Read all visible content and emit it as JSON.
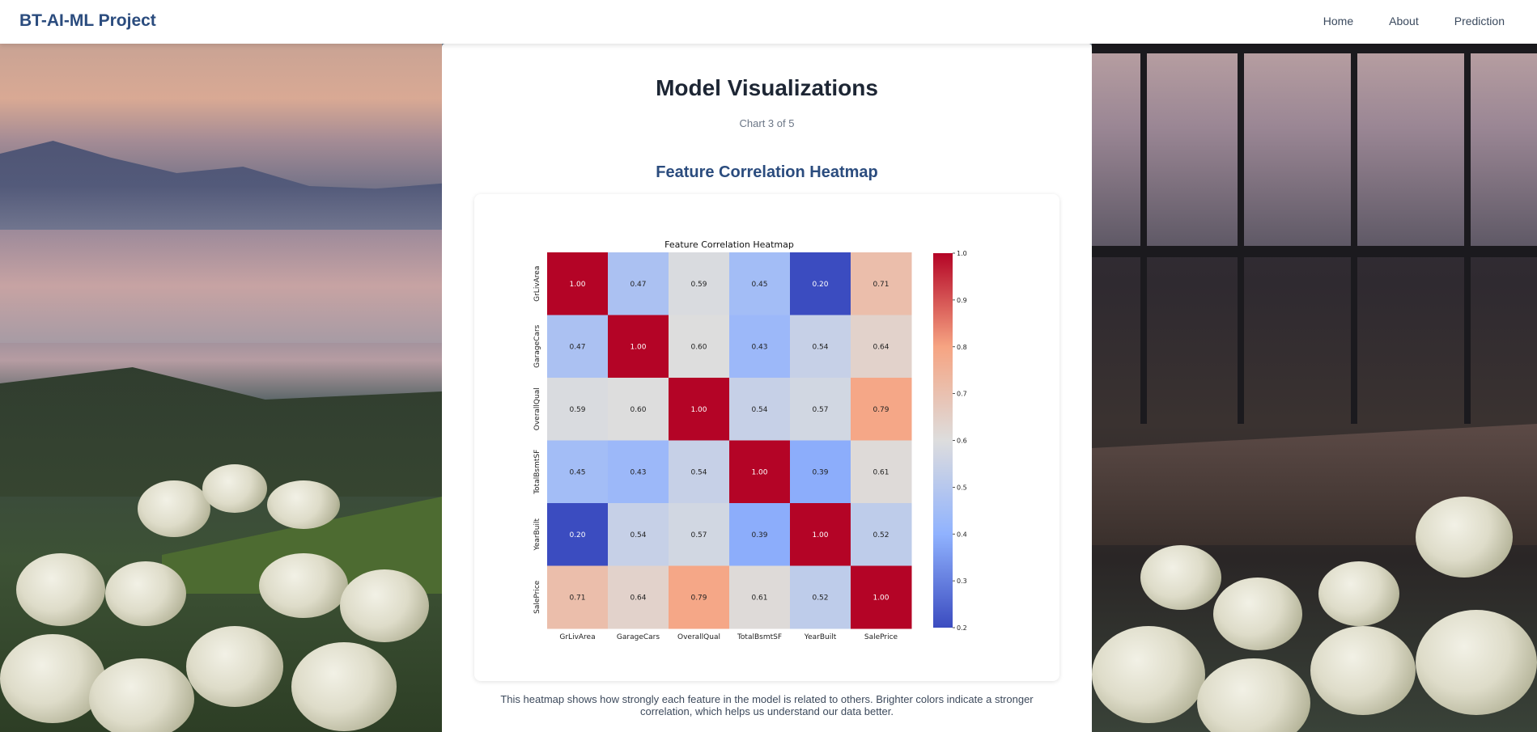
{
  "nav": {
    "brand": "BT-AI-ML Project",
    "links": [
      "Home",
      "About",
      "Prediction"
    ]
  },
  "page": {
    "title": "Model Visualizations",
    "counter": "Chart 3 of 5",
    "chart_heading": "Feature Correlation Heatmap",
    "description": "This heatmap shows how strongly each feature in the model is related to others. Brighter colors indicate a stronger correlation, which helps us understand our data better."
  },
  "chart_data": {
    "type": "heatmap",
    "title": "Feature Correlation Heatmap",
    "x_labels": [
      "GrLivArea",
      "GarageCars",
      "OverallQual",
      "TotalBsmtSF",
      "YearBuilt",
      "SalePrice"
    ],
    "y_labels": [
      "GrLivArea",
      "GarageCars",
      "OverallQual",
      "TotalBsmtSF",
      "YearBuilt",
      "SalePrice"
    ],
    "values": [
      [
        1.0,
        0.47,
        0.59,
        0.45,
        0.2,
        0.71
      ],
      [
        0.47,
        1.0,
        0.6,
        0.43,
        0.54,
        0.64
      ],
      [
        0.59,
        0.6,
        1.0,
        0.54,
        0.57,
        0.79
      ],
      [
        0.45,
        0.43,
        0.54,
        1.0,
        0.39,
        0.61
      ],
      [
        0.2,
        0.54,
        0.57,
        0.39,
        1.0,
        0.52
      ],
      [
        0.71,
        0.64,
        0.79,
        0.61,
        0.52,
        1.0
      ]
    ],
    "colorscale": "coolwarm",
    "vmin": 0.2,
    "vmax": 1.0,
    "colorbar_ticks": [
      "0.2",
      "0.3",
      "0.4",
      "0.5",
      "0.6",
      "0.7",
      "0.8",
      "0.9",
      "1.0"
    ]
  }
}
